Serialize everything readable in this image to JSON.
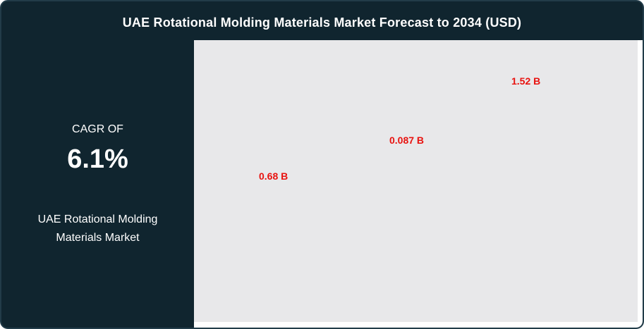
{
  "header": {
    "title": "UAE Rotational Molding Materials Market Forecast to 2034 (USD)"
  },
  "side_panel": {
    "cagr_label": "CAGR OF",
    "cagr_value": "6.1%",
    "market_name_line1": "UAE Rotational Molding",
    "market_name_line2": "Materials Market"
  },
  "colors": {
    "panel_background": "#10252f",
    "plot_background": "#e8e8ea",
    "figure_background": "#ffffff",
    "value_label_red": "#e8120f",
    "text_white": "#ffffff"
  },
  "chart_data": {
    "type": "bar",
    "title": "UAE Rotational Molding Materials Market Forecast to 2034 (USD)",
    "unit": "USD billions",
    "values": [
      0.68,
      0.087,
      1.52
    ],
    "value_labels": [
      "0.68 B",
      "0.087 B",
      "1.52 B"
    ],
    "cagr": "6.1%",
    "series_name": "UAE Rotational Molding Materials Market",
    "layout": {
      "axes_visible": false,
      "gridlines": false,
      "legend": "none",
      "bars_rendered": false,
      "labels_ascend_left_to_right": true
    }
  }
}
